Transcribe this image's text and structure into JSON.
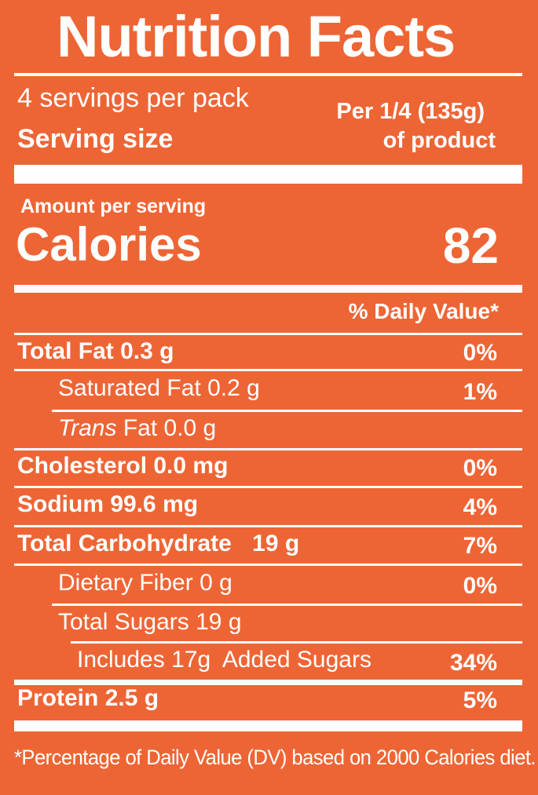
{
  "title": "Nutrition Facts",
  "servings_per_pack": "4 servings per pack",
  "serving_size_label": "Serving size",
  "serving_size_line1": "Per 1/4 (135g)",
  "serving_size_line2": "of product",
  "amount_per_serving": "Amount per serving",
  "calories_label": "Calories",
  "calories_value": "82",
  "daily_value_header": "% Daily Value*",
  "nutrients": {
    "total_fat": {
      "label": "Total Fat",
      "amount": "0.3 g",
      "dv": "0%"
    },
    "saturated_fat": {
      "label": "Saturated Fat",
      "amount": "0.2 g",
      "dv": "1%"
    },
    "trans_fat": {
      "label_italic": "Trans",
      "label": "Fat",
      "amount": "0.0 g"
    },
    "cholesterol": {
      "label": "Cholesterol",
      "amount": "0.0 mg",
      "dv": "0%"
    },
    "sodium": {
      "label": "Sodium",
      "amount": "99.6 mg",
      "dv": "4%"
    },
    "total_carbohydrate": {
      "label": "Total Carbohydrate",
      "amount": "19 g",
      "dv": "7%"
    },
    "dietary_fiber": {
      "label": "Dietary Fiber",
      "amount": "0 g",
      "dv": "0%"
    },
    "total_sugars": {
      "label": "Total Sugars",
      "amount": "19 g"
    },
    "added_sugars": {
      "prefix": "Includes",
      "amount": "17g",
      "label": "Added Sugars",
      "dv": "34%"
    },
    "protein": {
      "label": "Protein",
      "amount": "2.5 g",
      "dv": "5%"
    }
  },
  "footnote": "*Percentage of Daily Value (DV) based on 2000 Calories diet.",
  "colors": {
    "background": "#EE6535",
    "foreground": "#FFFFFF"
  }
}
